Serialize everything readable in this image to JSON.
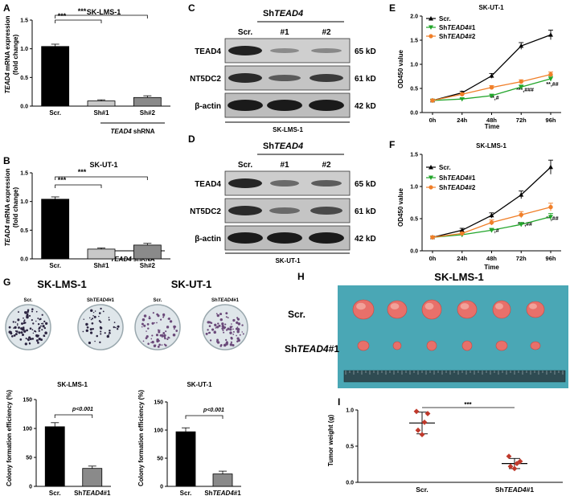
{
  "panels": {
    "A": {
      "letter": "A",
      "title": "SK-LMS-1",
      "ylabel_gene": "TEAD4",
      "ylabel_line1": " mRNA expression",
      "ylabel_line2": "(fold change)",
      "xgroup_gene": "TEAD4",
      "xgroup_rest": " shRNA",
      "sig1": "***",
      "sig2": "***"
    },
    "B": {
      "letter": "B",
      "title": "SK-UT-1",
      "ylabel_gene": "TEAD4",
      "ylabel_line1": " mRNA expression",
      "ylabel_line2": "(fold change)",
      "xgroup_gene": "TEAD4",
      "xgroup_rest": " shRNA",
      "sig1": "***",
      "sig2": "***"
    },
    "C": {
      "letter": "C",
      "header_prefix": "Sh",
      "header_gene": "TEAD4",
      "lanes": [
        "Scr.",
        "#1",
        "#2"
      ],
      "rows": [
        {
          "protein": "TEAD4",
          "kd": "65 kD"
        },
        {
          "protein": "NT5DC2",
          "kd": "61 kD"
        },
        {
          "protein": "β-actin",
          "kd": "42 kD"
        }
      ],
      "cell_line": "SK-LMS-1"
    },
    "D": {
      "letter": "D",
      "header_prefix": "Sh",
      "header_gene": "TEAD4",
      "lanes": [
        "Scr.",
        "#1",
        "#2"
      ],
      "rows": [
        {
          "protein": "TEAD4",
          "kd": "65 kD"
        },
        {
          "protein": "NT5DC2",
          "kd": "61 kD"
        },
        {
          "protein": "β-actin",
          "kd": "42 kD"
        }
      ],
      "cell_line": "SK-UT-1"
    },
    "E": {
      "letter": "E",
      "title": "SK-UT-1",
      "ylabel": "OD450 value",
      "xlabel": "Time",
      "legend": [
        {
          "prefix": "Scr.",
          "gene": "",
          "suffix": ""
        },
        {
          "prefix": "Sh",
          "gene": "TEAD4",
          "suffix": "#1"
        },
        {
          "prefix": "Sh",
          "gene": "TEAD4",
          "suffix": "#2"
        }
      ],
      "sig": [
        "**,#",
        "***,###",
        "**,##"
      ]
    },
    "F": {
      "letter": "F",
      "title": "SK-LMS-1",
      "ylabel": "OD450 value",
      "xlabel": "Time",
      "legend": [
        {
          "prefix": "Scr.",
          "gene": "",
          "suffix": ""
        },
        {
          "prefix": "Sh",
          "gene": "TEAD4",
          "suffix": "#1"
        },
        {
          "prefix": "Sh",
          "gene": "TEAD4",
          "suffix": "#2"
        }
      ],
      "sig": [
        "**,#",
        "***,##",
        "**,##"
      ]
    },
    "G": {
      "letter": "G",
      "left_header": "SK-LMS-1",
      "right_header": "SK-UT-1",
      "dish_labels": [
        {
          "prefix": "Scr.",
          "gene": "",
          "suffix": ""
        },
        {
          "prefix": "Sh",
          "gene": "TEAD4",
          "suffix": "#1"
        },
        {
          "prefix": "Scr.",
          "gene": "",
          "suffix": ""
        },
        {
          "prefix": "Sh",
          "gene": "TEAD4",
          "suffix": "#1"
        }
      ],
      "left_chart_title": "SK-LMS-1",
      "right_chart_title": "SK-UT-1",
      "ylabel": "Colony formation efficiency (%)",
      "pvalue": "p<0.001"
    },
    "H": {
      "letter": "H",
      "title": "SK-LMS-1",
      "row1_label": "Scr.",
      "row2_prefix": "Sh",
      "row2_gene": "TEAD4",
      "row2_suffix": "#1"
    },
    "I": {
      "letter": "I",
      "ylabel": "Tumor weight (g)",
      "sig": "***"
    }
  },
  "colors": {
    "scr": "#000000",
    "sh1": "#c8c8c8",
    "sh2": "#8a8a8a",
    "line_scr": "#000000",
    "line_sh1": "#22a52a",
    "line_sh2": "#f07f29",
    "dot": "#c0392b",
    "dish_bg": "#dfe6ea",
    "colony": "#2b2440",
    "photo_bg": "#4aa7b5",
    "tumor": "#e8706a"
  },
  "chart_data": [
    {
      "id": "A",
      "type": "bar",
      "title": "SK-LMS-1",
      "categories": [
        "Scr.",
        "Sh#1",
        "Sh#2"
      ],
      "values": [
        1.04,
        0.09,
        0.15
      ],
      "errors": [
        0.04,
        0.02,
        0.03
      ],
      "ylabel": "TEAD4 mRNA expression (fold change)",
      "xlabel": "TEAD4 shRNA",
      "ylim": [
        0,
        1.5
      ],
      "yticks": [
        0.0,
        0.5,
        1.0,
        1.5
      ]
    },
    {
      "id": "B",
      "type": "bar",
      "title": "SK-UT-1",
      "categories": [
        "Scr.",
        "Sh#1",
        "Sh#2"
      ],
      "values": [
        1.04,
        0.17,
        0.24
      ],
      "errors": [
        0.04,
        0.02,
        0.03
      ],
      "ylabel": "TEAD4 mRNA expression (fold change)",
      "xlabel": "TEAD4 shRNA",
      "ylim": [
        0,
        1.5
      ],
      "yticks": [
        0.0,
        0.5,
        1.0,
        1.5
      ]
    },
    {
      "id": "E",
      "type": "line",
      "title": "SK-UT-1",
      "x": [
        "0h",
        "24h",
        "48h",
        "72h",
        "96h"
      ],
      "series": [
        {
          "name": "Scr.",
          "values": [
            0.25,
            0.41,
            0.76,
            1.38,
            1.61
          ],
          "errors": [
            0.02,
            0.03,
            0.05,
            0.07,
            0.1
          ]
        },
        {
          "name": "ShTEAD4#1",
          "values": [
            0.25,
            0.28,
            0.35,
            0.53,
            0.7
          ],
          "errors": [
            0.02,
            0.02,
            0.03,
            0.04,
            0.05
          ]
        },
        {
          "name": "ShTEAD4#2",
          "values": [
            0.25,
            0.38,
            0.52,
            0.64,
            0.79
          ],
          "errors": [
            0.02,
            0.03,
            0.04,
            0.04,
            0.05
          ]
        }
      ],
      "ylabel": "OD450 value",
      "xlabel": "Time",
      "ylim": [
        0,
        2.0
      ],
      "yticks": [
        0.0,
        0.5,
        1.0,
        1.5,
        2.0
      ]
    },
    {
      "id": "F",
      "type": "line",
      "title": "SK-LMS-1",
      "x": [
        "0h",
        "24h",
        "48h",
        "72h",
        "96h"
      ],
      "series": [
        {
          "name": "Scr.",
          "values": [
            0.21,
            0.32,
            0.55,
            0.87,
            1.3
          ],
          "errors": [
            0.02,
            0.03,
            0.04,
            0.06,
            0.11
          ]
        },
        {
          "name": "ShTEAD4#1",
          "values": [
            0.21,
            0.25,
            0.32,
            0.41,
            0.53
          ],
          "errors": [
            0.02,
            0.02,
            0.03,
            0.03,
            0.05
          ]
        },
        {
          "name": "ShTEAD4#2",
          "values": [
            0.21,
            0.27,
            0.44,
            0.56,
            0.68
          ],
          "errors": [
            0.02,
            0.02,
            0.04,
            0.05,
            0.06
          ]
        }
      ],
      "ylabel": "OD450 value",
      "xlabel": "Time",
      "ylim": [
        0,
        1.5
      ],
      "yticks": [
        0.0,
        0.5,
        1.0,
        1.5
      ]
    },
    {
      "id": "G1",
      "type": "bar",
      "title": "SK-LMS-1",
      "categories": [
        "Scr.",
        "ShTEAD4#1"
      ],
      "values": [
        103,
        31
      ],
      "errors": [
        7,
        4
      ],
      "ylabel": "Colony formation efficiency (%)",
      "ylim": [
        0,
        150
      ],
      "yticks": [
        0,
        50,
        100,
        150
      ]
    },
    {
      "id": "G2",
      "type": "bar",
      "title": "SK-UT-1",
      "categories": [
        "Scr.",
        "ShTEAD4#1"
      ],
      "values": [
        97,
        22
      ],
      "errors": [
        7,
        5
      ],
      "ylabel": "Colony formation efficiency (%)",
      "ylim": [
        0,
        150
      ],
      "yticks": [
        0,
        50,
        100,
        150
      ]
    },
    {
      "id": "I",
      "type": "scatter",
      "categories": [
        "Scr.",
        "ShTEAD4#1"
      ],
      "points": [
        [
          0.98,
          0.95,
          0.83,
          0.72,
          0.66
        ],
        [
          0.36,
          0.29,
          0.26,
          0.22,
          0.19
        ]
      ],
      "means": [
        0.82,
        0.26
      ],
      "sds": [
        0.15,
        0.07
      ],
      "ylabel": "Tumor weight (g)",
      "ylim": [
        0,
        1.0
      ],
      "yticks": [
        0.0,
        0.5,
        1.0
      ]
    }
  ]
}
